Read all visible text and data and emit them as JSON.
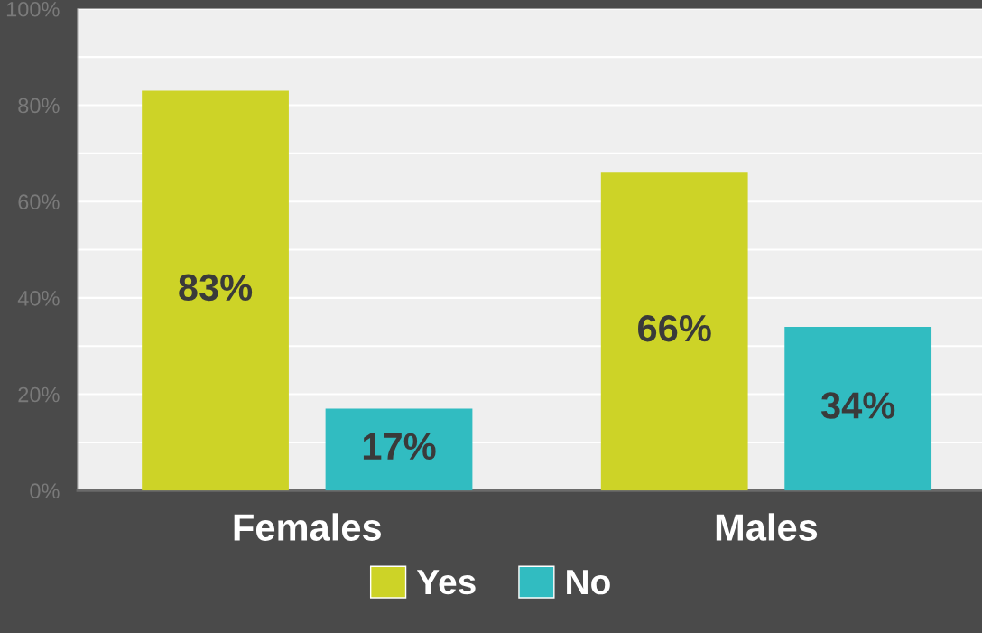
{
  "chart_data": {
    "type": "bar",
    "categories": [
      "Females",
      "Males"
    ],
    "series": [
      {
        "name": "Yes",
        "color": "#cdd327",
        "values": [
          83,
          66
        ],
        "value_labels": [
          "83%",
          "66%"
        ]
      },
      {
        "name": "No",
        "color": "#31bcc1",
        "values": [
          17,
          34
        ],
        "value_labels": [
          "17%",
          "34%"
        ]
      }
    ],
    "ylim": [
      0,
      100
    ],
    "yticks": [
      {
        "value": 0,
        "label": "0%"
      },
      {
        "value": 10,
        "label": null
      },
      {
        "value": 20,
        "label": "20%"
      },
      {
        "value": 30,
        "label": null
      },
      {
        "value": 40,
        "label": "40%"
      },
      {
        "value": 50,
        "label": null
      },
      {
        "value": 60,
        "label": "60%"
      },
      {
        "value": 70,
        "label": null
      },
      {
        "value": 80,
        "label": "80%"
      },
      {
        "value": 90,
        "label": null
      },
      {
        "value": 100,
        "label": "100%"
      }
    ],
    "grid": "y",
    "legend": "bottom"
  }
}
